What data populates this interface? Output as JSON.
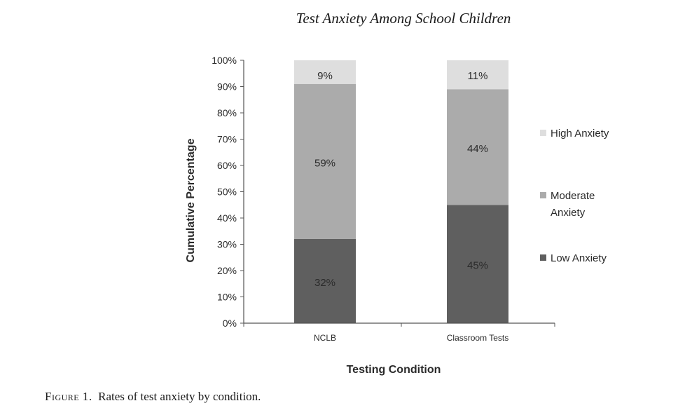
{
  "running_head": "Test Anxiety Among School Children",
  "caption": {
    "label": "Figure 1.",
    "text": "Rates of test anxiety by condition."
  },
  "chart_data": {
    "type": "bar",
    "stacked": true,
    "categories": [
      "NCLB",
      "Classroom Tests"
    ],
    "series": [
      {
        "name": "Low Anxiety",
        "values": [
          32,
          45
        ],
        "labels": [
          "32%",
          "45%"
        ],
        "color": "#5f5f5f"
      },
      {
        "name": "Moderate Anxiety",
        "values": [
          59,
          44
        ],
        "labels": [
          "59%",
          "44%"
        ],
        "color": "#ababab"
      },
      {
        "name": "High Anxiety",
        "values": [
          9,
          11
        ],
        "labels": [
          "9%",
          "11%"
        ],
        "color": "#dedede"
      }
    ],
    "legend_order": [
      "High Anxiety",
      "Moderate Anxiety",
      "Low Anxiety"
    ],
    "legend_position": "right",
    "title": "",
    "xlabel": "Testing Condition",
    "ylabel": "Cumulative Percentage",
    "ylim": [
      0,
      100
    ],
    "yticks": [
      0,
      10,
      20,
      30,
      40,
      50,
      60,
      70,
      80,
      90,
      100
    ],
    "ytick_labels": [
      "0%",
      "10%",
      "20%",
      "30%",
      "40%",
      "50%",
      "60%",
      "70%",
      "80%",
      "90%",
      "100%"
    ],
    "grid": false
  }
}
